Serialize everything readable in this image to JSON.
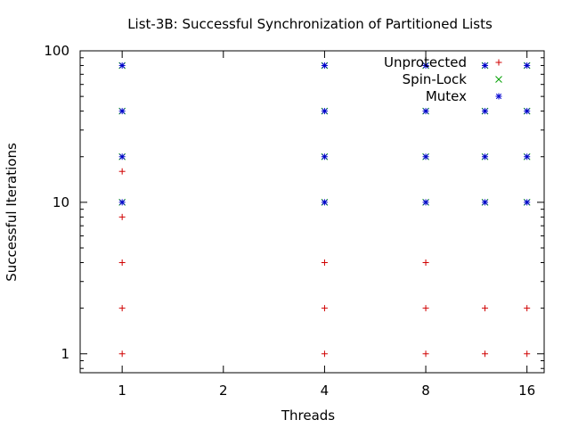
{
  "chart_data": {
    "type": "scatter",
    "title": "List-3B: Successful Synchronization of Partitioned Lists",
    "xlabel": "Threads",
    "ylabel": "Successful Iterations",
    "xscale": "log2",
    "yscale": "log10",
    "xlim": [
      0.75,
      18
    ],
    "ylim": [
      0.75,
      100
    ],
    "xticks": [
      1,
      2,
      4,
      8,
      16
    ],
    "yticks": [
      1,
      10,
      100
    ],
    "grid": false,
    "legend_position": "top-right",
    "series": [
      {
        "name": "Unprotected",
        "marker": "plus",
        "color": "#d00000",
        "points": [
          {
            "x": 1,
            "y": 1
          },
          {
            "x": 1,
            "y": 2
          },
          {
            "x": 1,
            "y": 4
          },
          {
            "x": 1,
            "y": 8
          },
          {
            "x": 1,
            "y": 16
          },
          {
            "x": 4,
            "y": 1
          },
          {
            "x": 4,
            "y": 2
          },
          {
            "x": 4,
            "y": 4
          },
          {
            "x": 8,
            "y": 1
          },
          {
            "x": 8,
            "y": 2
          },
          {
            "x": 8,
            "y": 4
          },
          {
            "x": 12,
            "y": 1
          },
          {
            "x": 12,
            "y": 2
          },
          {
            "x": 16,
            "y": 1
          },
          {
            "x": 16,
            "y": 2
          }
        ]
      },
      {
        "name": "Spin-Lock",
        "marker": "cross",
        "color": "#00a000",
        "points": [
          {
            "x": 1,
            "y": 10
          },
          {
            "x": 1,
            "y": 20
          },
          {
            "x": 1,
            "y": 40
          },
          {
            "x": 1,
            "y": 80
          },
          {
            "x": 4,
            "y": 10
          },
          {
            "x": 4,
            "y": 20
          },
          {
            "x": 4,
            "y": 40
          },
          {
            "x": 4,
            "y": 80
          },
          {
            "x": 8,
            "y": 10
          },
          {
            "x": 8,
            "y": 20
          },
          {
            "x": 8,
            "y": 40
          },
          {
            "x": 8,
            "y": 80
          },
          {
            "x": 12,
            "y": 10
          },
          {
            "x": 12,
            "y": 20
          },
          {
            "x": 12,
            "y": 40
          },
          {
            "x": 12,
            "y": 80
          },
          {
            "x": 16,
            "y": 10
          },
          {
            "x": 16,
            "y": 20
          },
          {
            "x": 16,
            "y": 40
          },
          {
            "x": 16,
            "y": 80
          }
        ]
      },
      {
        "name": "Mutex",
        "marker": "star",
        "color": "#0000d0",
        "points": [
          {
            "x": 1,
            "y": 10
          },
          {
            "x": 1,
            "y": 20
          },
          {
            "x": 1,
            "y": 40
          },
          {
            "x": 1,
            "y": 80
          },
          {
            "x": 4,
            "y": 10
          },
          {
            "x": 4,
            "y": 20
          },
          {
            "x": 4,
            "y": 40
          },
          {
            "x": 4,
            "y": 80
          },
          {
            "x": 8,
            "y": 10
          },
          {
            "x": 8,
            "y": 20
          },
          {
            "x": 8,
            "y": 40
          },
          {
            "x": 8,
            "y": 80
          },
          {
            "x": 12,
            "y": 10
          },
          {
            "x": 12,
            "y": 20
          },
          {
            "x": 12,
            "y": 40
          },
          {
            "x": 12,
            "y": 80
          },
          {
            "x": 16,
            "y": 10
          },
          {
            "x": 16,
            "y": 20
          },
          {
            "x": 16,
            "y": 40
          },
          {
            "x": 16,
            "y": 80
          }
        ]
      }
    ]
  }
}
